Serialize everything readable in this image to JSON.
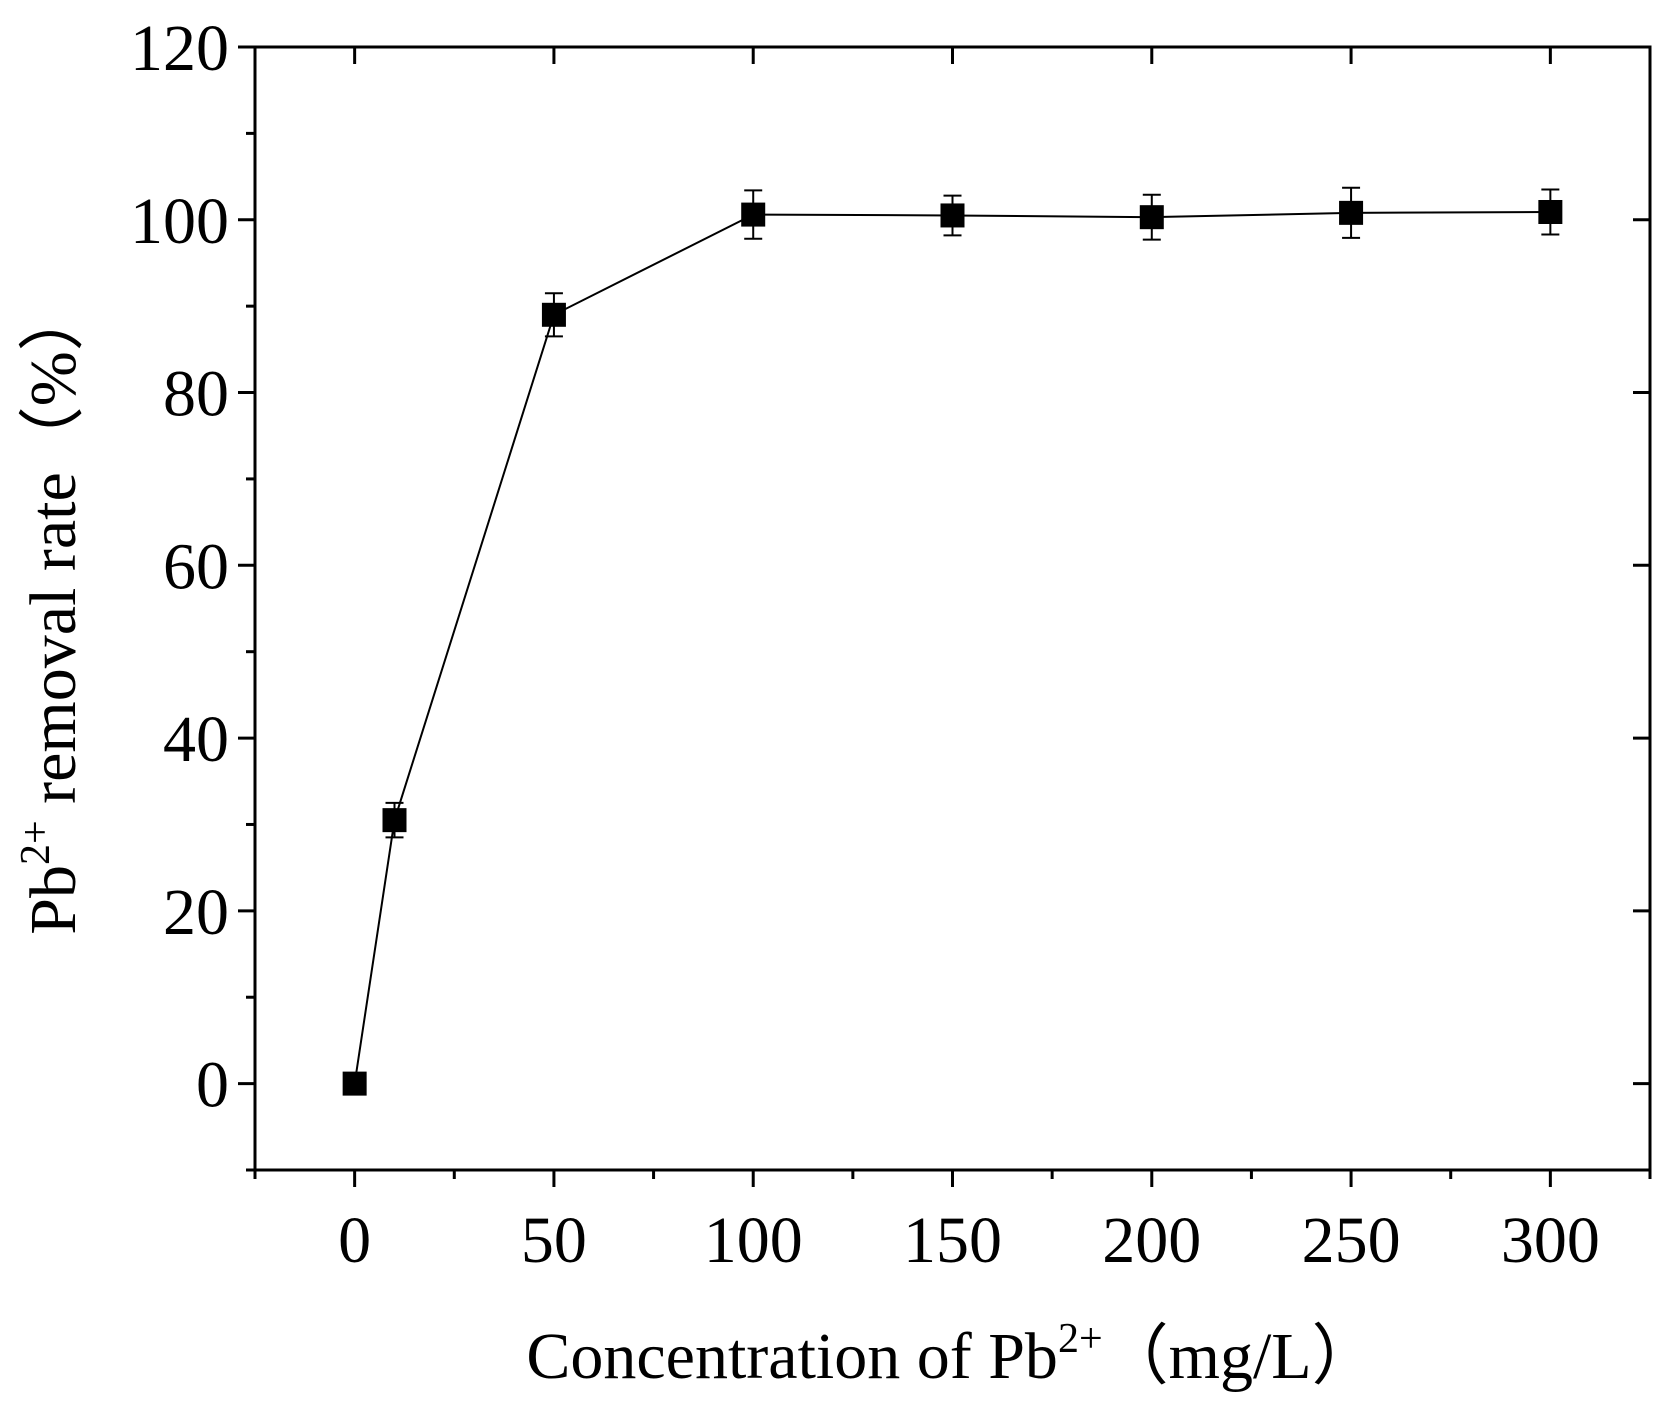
{
  "chart_data": {
    "type": "line",
    "title": "",
    "xlabel": {
      "prefix": "Concentration of  Pb",
      "superscript": "2+",
      "suffix": "（mg/L）"
    },
    "ylabel": {
      "prefix": "Pb",
      "superscript": "2+",
      "suffix": " removal rate（%）"
    },
    "xlim": [
      -25,
      325
    ],
    "ylim": [
      -10,
      120
    ],
    "xticks": [
      0,
      50,
      100,
      150,
      200,
      250,
      300
    ],
    "yticks": [
      0,
      20,
      40,
      60,
      80,
      100,
      120
    ],
    "xtick_labels": [
      "0",
      "50",
      "100",
      "150",
      "200",
      "250",
      "300"
    ],
    "ytick_labels": [
      "0",
      "20",
      "40",
      "60",
      "80",
      "100",
      "120"
    ],
    "x_minor_step": 25,
    "y_minor_step": 10,
    "grid": false,
    "legend": "none",
    "marker": "square",
    "color": "#000000",
    "series": [
      {
        "name": "Pb2+ removal rate",
        "x": [
          0,
          10,
          50,
          100,
          150,
          200,
          250,
          300
        ],
        "y": [
          0,
          30.5,
          89,
          100.6,
          100.5,
          100.3,
          100.8,
          100.9
        ],
        "yerr": [
          0,
          2.0,
          2.5,
          2.8,
          2.3,
          2.6,
          2.9,
          2.6
        ]
      }
    ]
  }
}
